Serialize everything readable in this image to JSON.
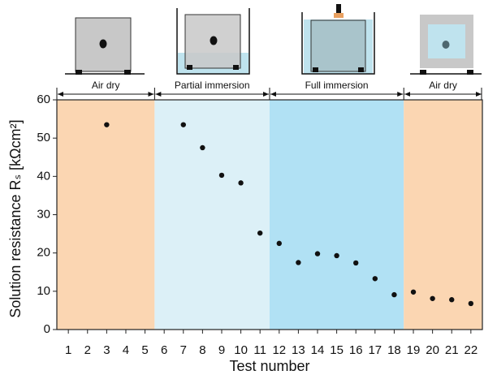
{
  "chart_data": {
    "type": "scatter",
    "xlabel": "Test number",
    "ylabel": "Solution resistance Rₛ [kΩcm²]",
    "x": [
      3,
      7,
      8,
      9,
      10,
      11,
      12,
      13,
      14,
      15,
      16,
      17,
      18,
      19,
      20,
      21,
      22
    ],
    "values": [
      53.5,
      53.5,
      47.5,
      40.3,
      38.3,
      25.2,
      22.5,
      17.5,
      19.8,
      19.3,
      17.4,
      13.3,
      9.1,
      9.8,
      8.1,
      7.8,
      6.8
    ],
    "color": "#111111",
    "xlim": [
      0.4,
      22.6
    ],
    "xticks": [
      1,
      2,
      3,
      4,
      5,
      6,
      7,
      8,
      9,
      10,
      11,
      12,
      13,
      14,
      15,
      16,
      17,
      18,
      19,
      20,
      21,
      22
    ],
    "ylim": [
      0,
      60
    ],
    "yticks": [
      0,
      10,
      20,
      30,
      40,
      50,
      60
    ],
    "regions": [
      {
        "label": "Air dry",
        "x0": 0.4,
        "x1": 5.5,
        "color": "#fbd6b2"
      },
      {
        "label": "Partial immersion",
        "x0": 5.5,
        "x1": 11.5,
        "color": "#dcf0f7"
      },
      {
        "label": "Full immersion",
        "x0": 11.5,
        "x1": 18.5,
        "color": "#b1e1f4"
      },
      {
        "label": "Air dry",
        "x0": 18.5,
        "x1": 22.6,
        "color": "#fbd6b2"
      }
    ]
  }
}
